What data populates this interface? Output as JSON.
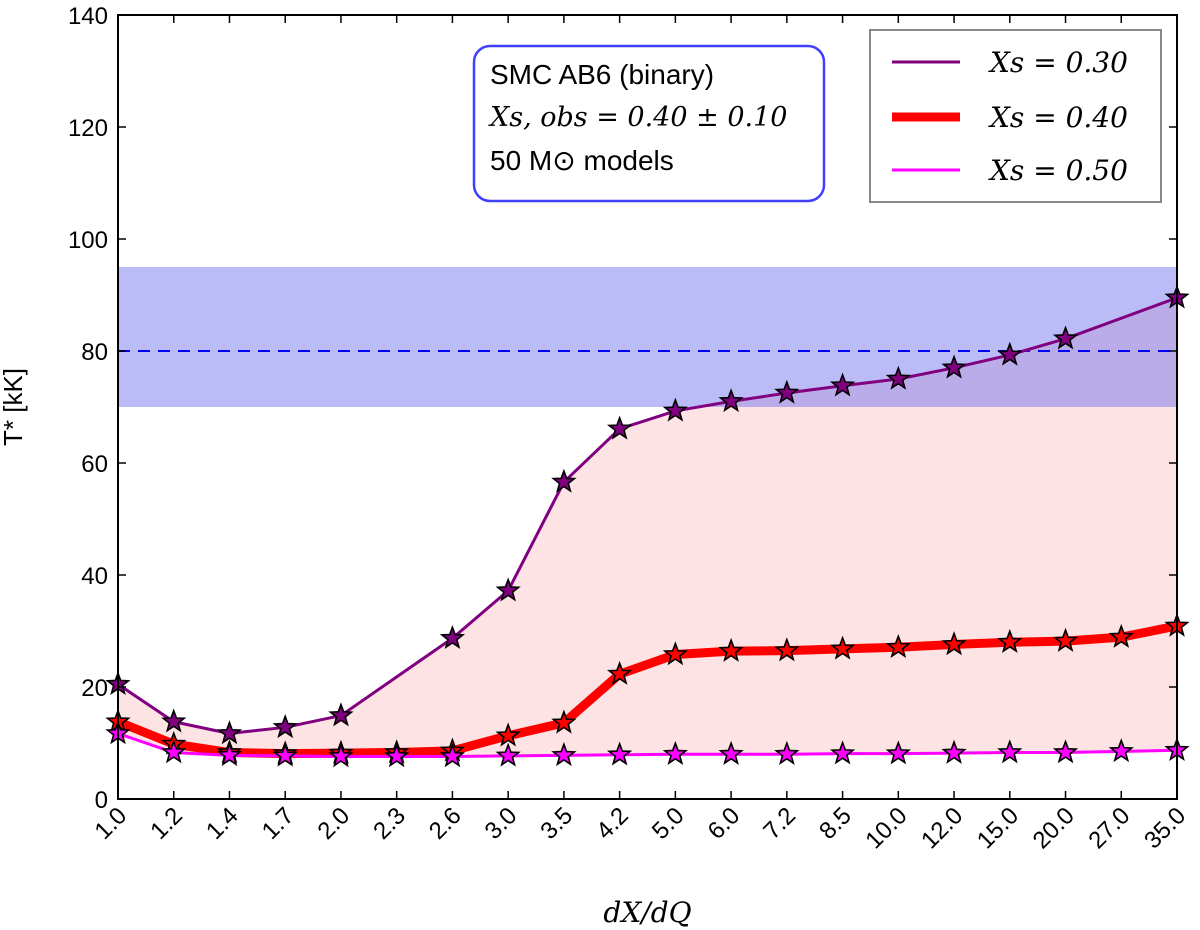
{
  "chart_data": {
    "type": "line",
    "xlabel": "dX/dQ",
    "ylabel": "T_* [kK]",
    "ylabel_display": "T* [kK]",
    "ylim": [
      0,
      140
    ],
    "yticks": [
      0,
      20,
      40,
      60,
      80,
      100,
      120,
      140
    ],
    "categories": [
      "1.0",
      "1.2",
      "1.4",
      "1.7",
      "2.0",
      "2.3",
      "2.6",
      "3.0",
      "3.5",
      "4.2",
      "5.0",
      "6.0",
      "7.2",
      "8.5",
      "10.0",
      "12.0",
      "15.0",
      "20.0",
      "27.0",
      "35.0"
    ],
    "x_numeric": [
      1.0,
      1.2,
      1.4,
      1.7,
      2.0,
      2.3,
      2.6,
      3.0,
      3.5,
      4.2,
      5.0,
      6.0,
      7.2,
      8.5,
      10.0,
      12.0,
      15.0,
      20.0,
      27.0,
      35.0
    ],
    "series": [
      {
        "name": "X_s = 0.30",
        "label_display": "Xs = 0.30",
        "color": "#800080",
        "values": [
          20.5,
          13.8,
          11.7,
          12.8,
          14.9,
          null,
          28.7,
          37.2,
          56.6,
          66.1,
          69.3,
          71.0,
          72.5,
          73.8,
          75.0,
          77.0,
          79.3,
          82.2,
          null,
          89.5
        ],
        "marker_values": [
          20.5,
          13.8,
          11.7,
          12.8,
          14.9,
          null,
          28.7,
          37.2,
          56.6,
          66.1,
          69.3,
          71.0,
          72.5,
          73.8,
          75.0,
          77.0,
          79.3,
          82.2,
          null,
          89.5
        ]
      },
      {
        "name": "X_s = 0.40",
        "label_display": "Xs = 0.40",
        "color": "#ff0000",
        "values": [
          13.8,
          9.8,
          8.3,
          8.1,
          8.2,
          8.3,
          8.6,
          11.3,
          13.6,
          22.3,
          25.8,
          26.4,
          26.5,
          26.8,
          27.1,
          27.6,
          28.0,
          28.2,
          28.9,
          30.9
        ],
        "marker_values": [
          13.8,
          9.8,
          8.3,
          8.1,
          8.2,
          8.3,
          8.6,
          11.3,
          13.6,
          22.3,
          25.8,
          26.4,
          26.5,
          26.8,
          27.1,
          27.6,
          28.0,
          28.2,
          28.9,
          30.9
        ]
      },
      {
        "name": "X_s = 0.50",
        "label_display": "Xs = 0.50",
        "color": "#ff00ff",
        "values": [
          11.7,
          8.3,
          7.8,
          7.7,
          7.6,
          7.6,
          7.6,
          7.7,
          7.8,
          7.9,
          8.0,
          8.0,
          8.0,
          8.1,
          8.1,
          8.2,
          8.3,
          8.3,
          8.5,
          8.7
        ],
        "marker_values": [
          11.7,
          8.3,
          7.8,
          7.7,
          7.6,
          7.6,
          7.6,
          7.7,
          7.8,
          7.9,
          8.0,
          8.0,
          8.0,
          8.1,
          8.1,
          8.2,
          8.3,
          8.3,
          8.5,
          8.7
        ]
      }
    ],
    "observed": {
      "value": 80,
      "range": [
        70,
        95
      ],
      "line_color": "#0000ff",
      "band_color": "#b9b9fb"
    },
    "fill_between_color": "#fde3e3",
    "annotation": {
      "line1": "SMC AB6 (binary)",
      "line2": "Xs, obs = 0.40 ± 0.10",
      "line3": "50 M⊙ models",
      "border_color": "#4040ff"
    },
    "legend_placement": "top-right",
    "grid": false
  }
}
